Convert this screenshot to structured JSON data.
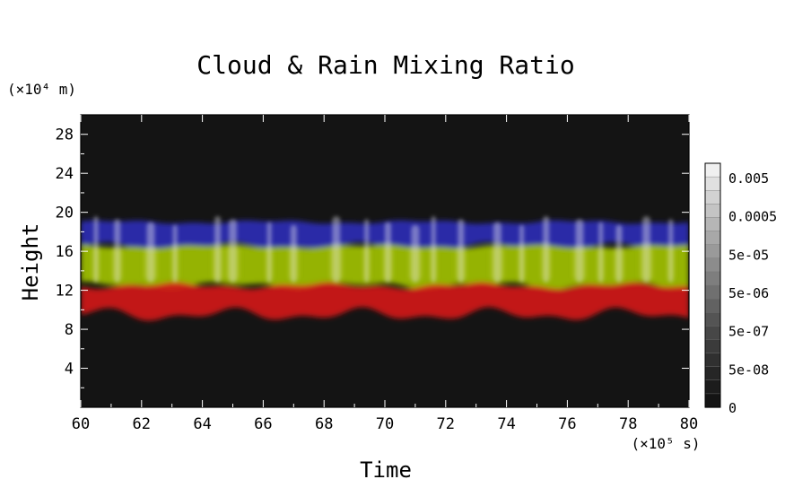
{
  "chart_data": {
    "type": "heatmap",
    "title": "Cloud & Rain Mixing Ratio",
    "xlabel": "Time",
    "ylabel": "Height",
    "x_units": "(×10⁵ s)",
    "y_units": "(×10⁴ m)",
    "xlim": [
      60,
      80
    ],
    "ylim": [
      0,
      30
    ],
    "x_ticks": [
      "60",
      "62",
      "64",
      "66",
      "68",
      "70",
      "72",
      "74",
      "76",
      "78",
      "80"
    ],
    "y_ticks": [
      "4",
      "8",
      "12",
      "16",
      "20",
      "24",
      "28"
    ],
    "grid": false,
    "colorbar": {
      "labels": [
        "0.005",
        "0.0005",
        "5e-05",
        "5e-06",
        "5e-07",
        "5e-08",
        "0"
      ],
      "colors": [
        "#f0f0f0",
        "#e0e0e0",
        "#d2d2d2",
        "#c4c4c4",
        "#b6b6b6",
        "#a8a8a8",
        "#9a9a9a",
        "#8c8c8c",
        "#7e7e7e",
        "#707070",
        "#626262",
        "#545454",
        "#474747",
        "#3b3b3b",
        "#303030",
        "#262626",
        "#1c1c1c",
        "#141414"
      ]
    },
    "bands": [
      {
        "color": "#2a2ab4",
        "bottom": 16.5,
        "top": 19
      },
      {
        "color": "#a0c000",
        "bottom": 12.5,
        "top": 16.5
      },
      {
        "color": "#d01818",
        "bottom": 9.5,
        "top": 12.5
      }
    ],
    "background_color": "#141414",
    "plume_times": [
      60.5,
      61.2,
      62.3,
      63.1,
      64.5,
      65.0,
      66.2,
      67.0,
      68.4,
      69.4,
      70.1,
      71.0,
      71.6,
      72.5,
      73.7,
      74.5,
      75.3,
      76.4,
      77.1,
      77.7,
      78.6,
      79.4
    ]
  }
}
